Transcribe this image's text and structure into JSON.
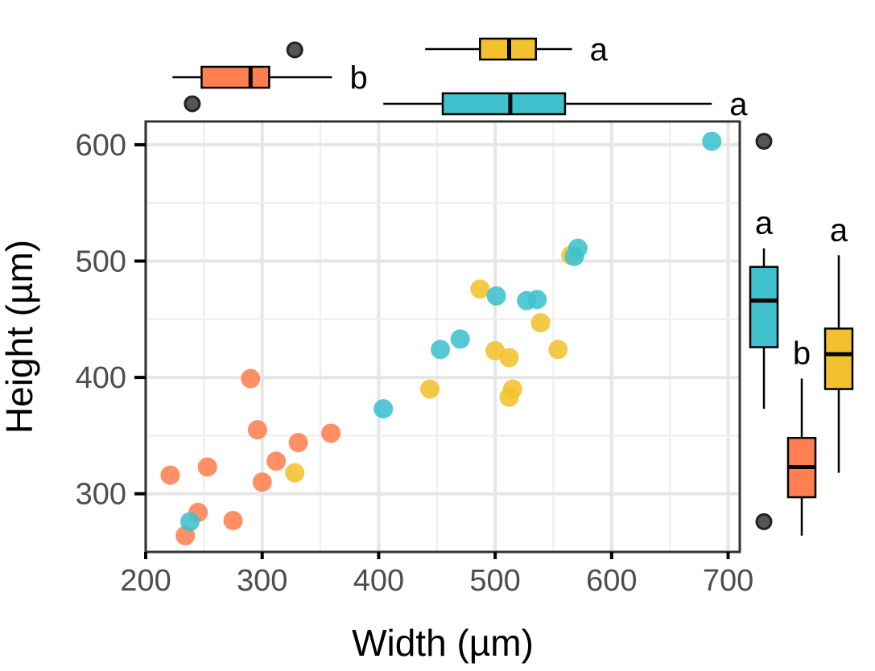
{
  "chart_data": {
    "type": "scatter",
    "title": "",
    "xlabel": "Width (µm)",
    "ylabel": "Height (µm)",
    "xlim": [
      200,
      710
    ],
    "ylim": [
      250,
      620
    ],
    "xticks": [
      200,
      300,
      400,
      500,
      600,
      700
    ],
    "yticks": [
      300,
      400,
      500,
      600
    ],
    "grid": true,
    "legend": "none",
    "series": [
      {
        "color": "#FF7F50",
        "points": [
          {
            "x": 221,
            "y": 316
          },
          {
            "x": 234,
            "y": 264
          },
          {
            "x": 245,
            "y": 284
          },
          {
            "x": 253,
            "y": 323
          },
          {
            "x": 275,
            "y": 277
          },
          {
            "x": 290,
            "y": 399
          },
          {
            "x": 296,
            "y": 355
          },
          {
            "x": 300,
            "y": 310
          },
          {
            "x": 312,
            "y": 328
          },
          {
            "x": 331,
            "y": 344
          },
          {
            "x": 359,
            "y": 352
          }
        ]
      },
      {
        "color": "#F2C12E",
        "points": [
          {
            "x": 328,
            "y": 318
          },
          {
            "x": 444,
            "y": 390
          },
          {
            "x": 487,
            "y": 476
          },
          {
            "x": 500,
            "y": 423
          },
          {
            "x": 512,
            "y": 417
          },
          {
            "x": 512,
            "y": 383
          },
          {
            "x": 515,
            "y": 390
          },
          {
            "x": 539,
            "y": 447
          },
          {
            "x": 554,
            "y": 424
          },
          {
            "x": 565,
            "y": 505
          }
        ]
      },
      {
        "color": "#3EC1CD",
        "points": [
          {
            "x": 238,
            "y": 276
          },
          {
            "x": 404,
            "y": 373
          },
          {
            "x": 453,
            "y": 424
          },
          {
            "x": 470,
            "y": 433
          },
          {
            "x": 501,
            "y": 470
          },
          {
            "x": 527,
            "y": 466
          },
          {
            "x": 536,
            "y": 467
          },
          {
            "x": 568,
            "y": 504
          },
          {
            "x": 571,
            "y": 511
          },
          {
            "x": 686,
            "y": 603
          }
        ]
      }
    ],
    "x_boxplots": [
      {
        "color": "#FF7F50",
        "letter": "b",
        "whisker_low": 223,
        "q1": 248,
        "median": 290,
        "q3": 306,
        "whisker_high": 360,
        "outliers": [
          240,
          328
        ]
      },
      {
        "color": "#F2C12E",
        "letter": "a",
        "whisker_low": 440,
        "q1": 487,
        "median": 512,
        "q3": 535,
        "whisker_high": 566,
        "outliers": []
      },
      {
        "color": "#3EC1CD",
        "letter": "a",
        "whisker_low": 404,
        "q1": 455,
        "median": 513,
        "q3": 560,
        "whisker_high": 686,
        "outliers": []
      }
    ],
    "y_boxplots": [
      {
        "color": "#3EC1CD",
        "letter": "a",
        "whisker_low": 373,
        "q1": 426,
        "median": 466,
        "q3": 495,
        "whisker_high": 511,
        "outliers": [
          276,
          603
        ]
      },
      {
        "color": "#FF7F50",
        "letter": "b",
        "whisker_low": 264,
        "q1": 297,
        "median": 323,
        "q3": 348,
        "whisker_high": 399,
        "outliers": []
      },
      {
        "color": "#F2C12E",
        "letter": "a",
        "whisker_low": 318,
        "q1": 390,
        "median": 420,
        "q3": 442,
        "whisker_high": 505,
        "outliers": []
      }
    ]
  }
}
